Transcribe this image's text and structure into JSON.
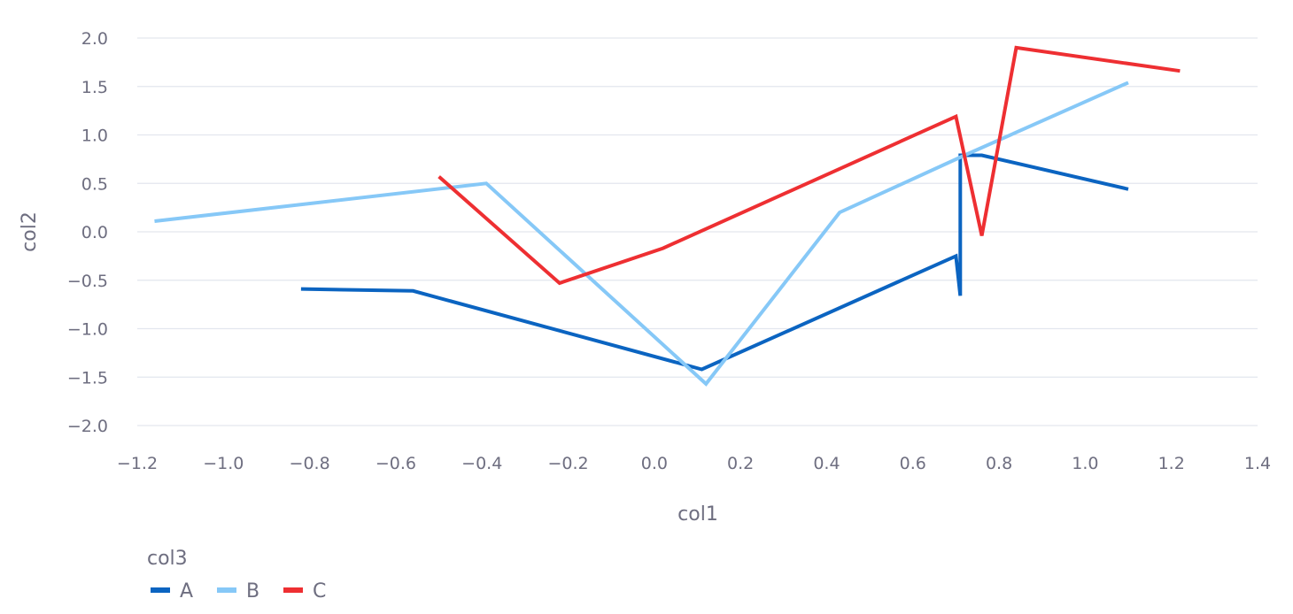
{
  "chart_data": {
    "type": "line",
    "xlabel": "col1",
    "ylabel": "col2",
    "xlim": [
      -1.2,
      1.4
    ],
    "ylim": [
      -2.0,
      2.0
    ],
    "x_ticks": [
      -1.2,
      -1.0,
      -0.8,
      -0.6,
      -0.4,
      -0.2,
      0.0,
      0.2,
      0.4,
      0.6,
      0.8,
      1.0,
      1.2,
      1.4
    ],
    "y_ticks": [
      -2.0,
      -1.5,
      -1.0,
      -0.5,
      0.0,
      0.5,
      1.0,
      1.5,
      2.0
    ],
    "grid": "horizontal",
    "legend": {
      "title": "col3",
      "placement": "bottom-left"
    },
    "series": [
      {
        "name": "A",
        "color": "#0b64c1",
        "points": [
          [
            -0.82,
            -0.59
          ],
          [
            -0.56,
            -0.61
          ],
          [
            0.11,
            -1.42
          ],
          [
            0.7,
            -0.25
          ],
          [
            0.71,
            -0.66
          ],
          [
            0.71,
            0.79
          ],
          [
            0.76,
            0.79
          ],
          [
            1.1,
            0.44
          ]
        ]
      },
      {
        "name": "B",
        "color": "#86c8f7",
        "points": [
          [
            -1.16,
            0.11
          ],
          [
            -0.39,
            0.5
          ],
          [
            0.12,
            -1.57
          ],
          [
            0.43,
            0.2
          ],
          [
            0.72,
            0.79
          ],
          [
            1.1,
            1.54
          ]
        ]
      },
      {
        "name": "C",
        "color": "#ee2f32",
        "points": [
          [
            -0.5,
            0.57
          ],
          [
            -0.22,
            -0.53
          ],
          [
            0.02,
            -0.17
          ],
          [
            0.7,
            1.19
          ],
          [
            0.76,
            -0.04
          ],
          [
            0.84,
            1.9
          ],
          [
            1.22,
            1.66
          ]
        ]
      }
    ]
  }
}
